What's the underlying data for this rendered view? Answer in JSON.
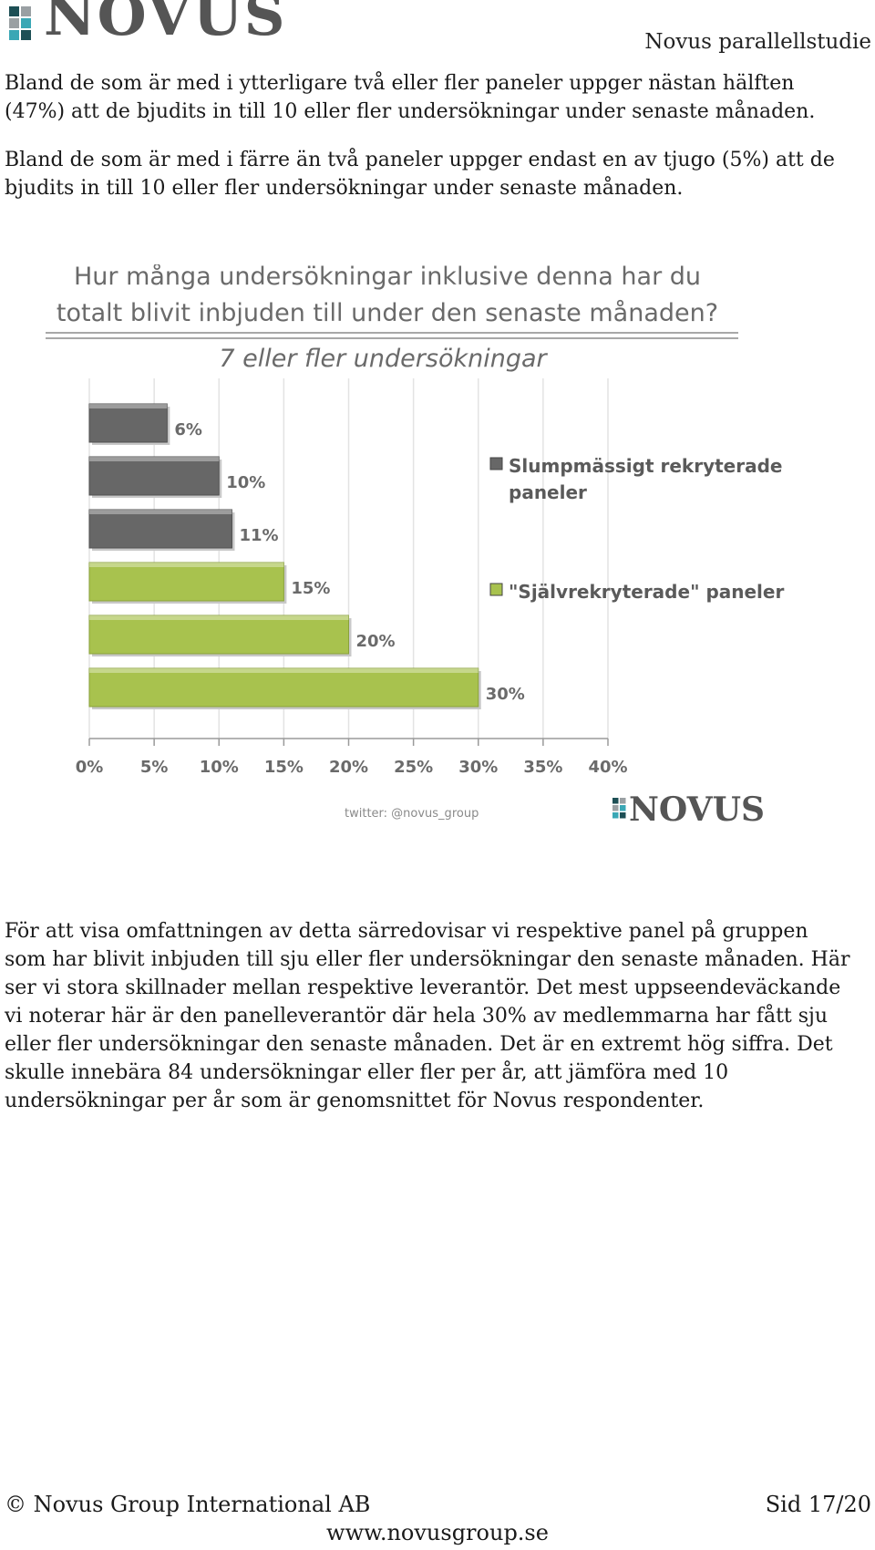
{
  "header": {
    "logo_text": "NOVUS",
    "title": "Novus parallellstudie"
  },
  "paragraphs": [
    "Bland de som är med i ytterligare två eller fler paneler uppger nästan hälften (47%) att de bjudits in till 10 eller fler undersökningar under senaste månaden.",
    "Bland de som är med i färre än två paneler uppger endast en av tjugo (5%) att de bjudits in till 10 eller fler undersökningar under senaste månaden.",
    "För att visa omfattningen av detta särredovisar vi respektive panel på gruppen som har blivit inbjuden till sju eller fler undersökningar den senaste månaden. Här ser vi stora skillnader mellan respektive leverantör. Det mest uppseendeväckande vi noterar här är den panelleverantör där hela 30% av medlemmarna har fått sju eller fler undersökningar den senaste månaden. Det är en extremt hög siffra. Det skulle innebära 84 undersökningar eller fler per år, att jämföra med 10 undersökningar per år som är genomsnittet för Novus respondenter."
  ],
  "chart_data": {
    "type": "bar",
    "orientation": "horizontal",
    "title_line1": "Hur många undersökningar inklusive denna har du",
    "title_line2": "totalt blivit inbjuden till under den senaste månaden?",
    "subtitle": "7 eller fler undersökningar",
    "xlim": [
      0,
      40
    ],
    "x_ticks": [
      "0%",
      "5%",
      "10%",
      "15%",
      "20%",
      "25%",
      "30%",
      "35%",
      "40%"
    ],
    "grid": true,
    "legend_position": "right",
    "series": [
      {
        "name": "Slumpmässigt rekryterade paneler",
        "color": "#676767",
        "values": [
          6,
          10,
          11
        ]
      },
      {
        "name": "\"Självrekryterade\" paneler",
        "color": "#a8c24e",
        "values": [
          15,
          20,
          30
        ]
      }
    ],
    "bars": [
      {
        "value": 6,
        "label": "6%",
        "series": 0
      },
      {
        "value": 10,
        "label": "10%",
        "series": 0
      },
      {
        "value": 11,
        "label": "11%",
        "series": 0
      },
      {
        "value": 15,
        "label": "15%",
        "series": 1
      },
      {
        "value": 20,
        "label": "20%",
        "series": 1
      },
      {
        "value": 30,
        "label": "30%",
        "series": 1
      }
    ],
    "credit": "twitter: @novus_group",
    "watermark_logo": "NOVUS"
  },
  "footer": {
    "copyright": "© Novus Group International AB",
    "page": "Sid 17/20",
    "website": "www.novusgroup.se"
  }
}
